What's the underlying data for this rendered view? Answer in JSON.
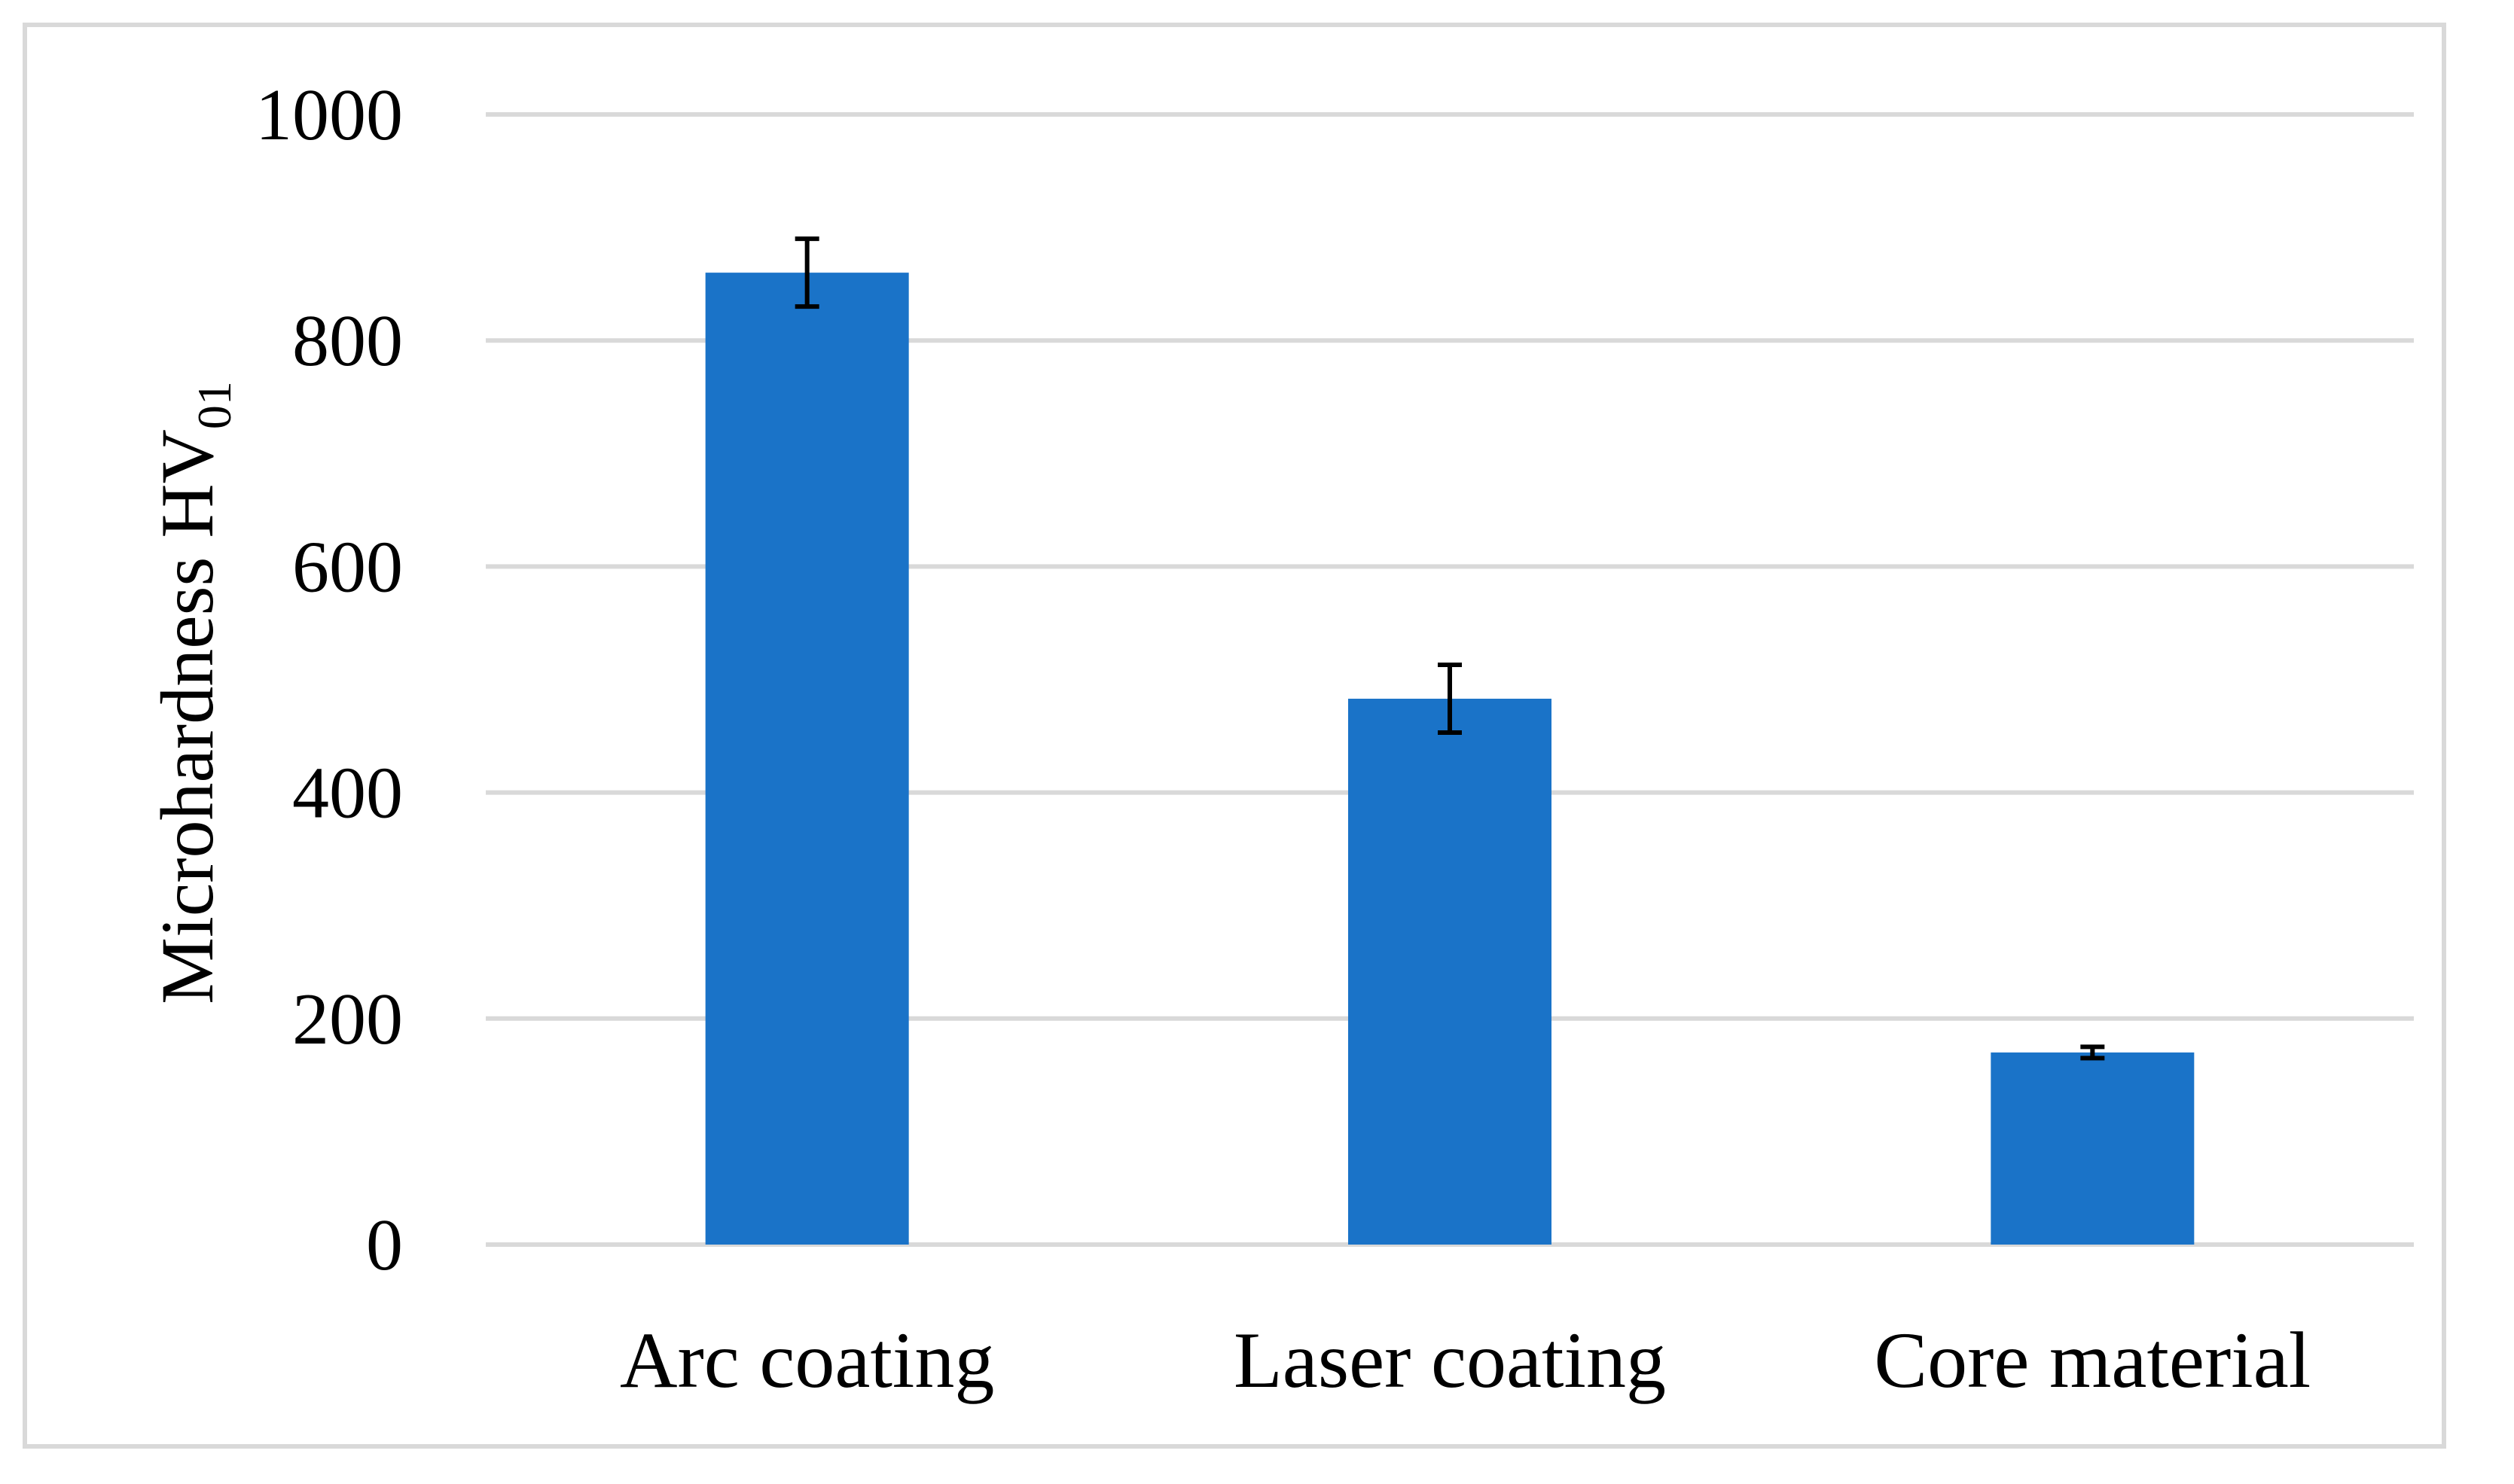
{
  "chart_data": {
    "type": "bar",
    "title": "",
    "xlabel": "",
    "ylabel": "Microhardness HV",
    "ylabel_subscript": "01",
    "categories": [
      "Arc coating",
      "Laser coating",
      "Core material"
    ],
    "values": [
      860,
      483,
      170
    ],
    "errors": [
      30,
      30,
      5
    ],
    "ylim": [
      0,
      1000
    ],
    "yticks": [
      0,
      200,
      400,
      600,
      800,
      1000
    ],
    "grid": true,
    "legend": "none",
    "colors": {
      "bar": "#1a73c8",
      "grid": "#d9d9d9",
      "error_bar": "#000000"
    }
  }
}
